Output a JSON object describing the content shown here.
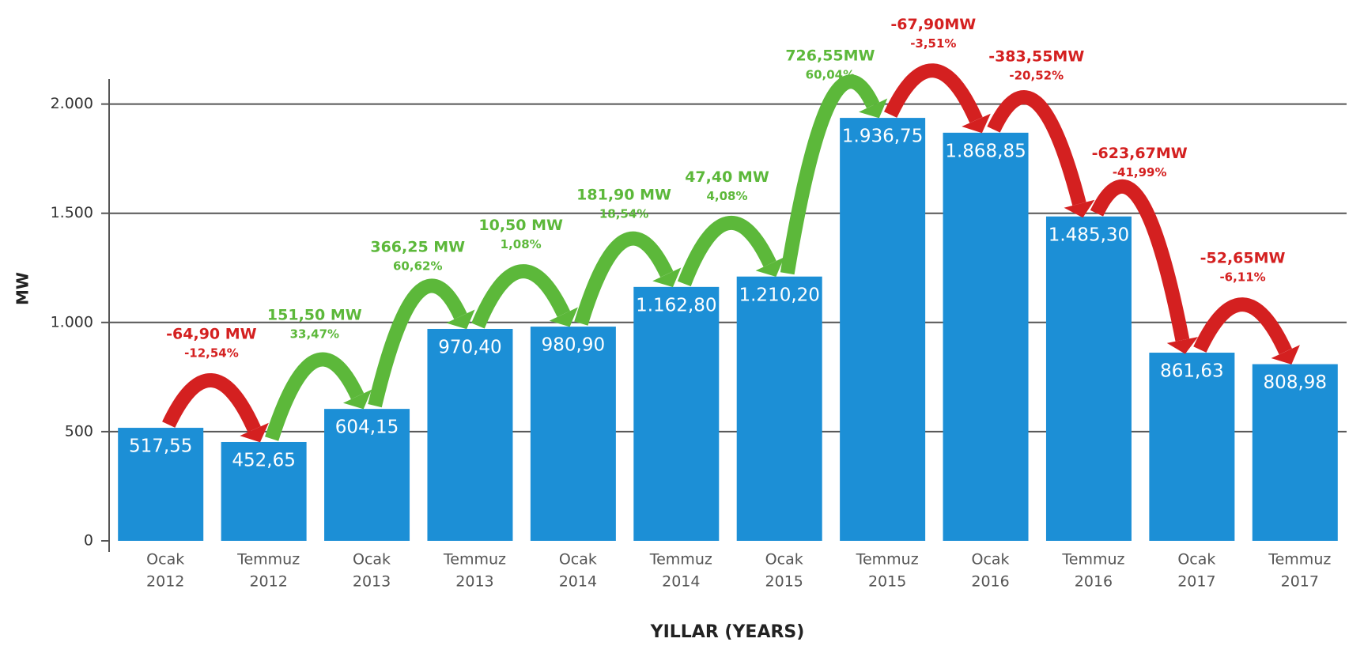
{
  "chart_data": {
    "type": "bar",
    "y_label": "MW",
    "x_label": "YILLAR (YEARS)",
    "categories": [
      [
        "Ocak",
        "2012"
      ],
      [
        "Temmuz",
        "2012"
      ],
      [
        "Ocak",
        "2013"
      ],
      [
        "Temmuz",
        "2013"
      ],
      [
        "Ocak",
        "2014"
      ],
      [
        "Temmuz",
        "2014"
      ],
      [
        "Ocak",
        "2015"
      ],
      [
        "Temmuz",
        "2015"
      ],
      [
        "Ocak",
        "2016"
      ],
      [
        "Temmuz",
        "2016"
      ],
      [
        "Ocak",
        "2017"
      ],
      [
        "Temmuz",
        "2017"
      ]
    ],
    "values": [
      517.55,
      452.65,
      604.15,
      970.4,
      980.9,
      1162.8,
      1210.2,
      1936.75,
      1868.85,
      1485.3,
      861.63,
      808.98
    ],
    "value_labels": [
      "517,55",
      "452,65",
      "604,15",
      "970,40",
      "980,90",
      "1.162,80",
      "1.210,20",
      "1.936,75",
      "1.868,85",
      "1.485,30",
      "861,63",
      "808,98"
    ],
    "color": "#1c8fd6",
    "ylim": [
      0,
      2100
    ],
    "yticks": [
      0,
      500,
      {
        "value": 1000,
        "label": "1.000"
      },
      {
        "value": 1500,
        "label": "1.500"
      },
      {
        "value": 2000,
        "label": "2.000"
      }
    ],
    "grid": true,
    "annotations": [
      {
        "text": "-64,90 MW",
        "percent": "-12,54%",
        "color": "#d42020"
      },
      {
        "text": "151,50 MW",
        "percent": "33,47%",
        "color": "#5cb83a"
      },
      {
        "text": "366,25 MW",
        "percent": "60,62%",
        "color": "#5cb83a"
      },
      {
        "text": "10,50 MW",
        "percent": "1,08%",
        "color": "#5cb83a"
      },
      {
        "text": "181,90 MW",
        "percent": "18,54%",
        "color": "#5cb83a"
      },
      {
        "text": "47,40 MW",
        "percent": "4,08%",
        "color": "#5cb83a"
      },
      {
        "text": "726,55MW",
        "percent": "60,04%",
        "color": "#5cb83a"
      },
      {
        "text": "-67,90MW",
        "percent": "-3,51%",
        "color": "#d42020"
      },
      {
        "text": "-383,55MW",
        "percent": "-20,52%",
        "color": "#d42020"
      },
      {
        "text": "-623,67MW",
        "percent": "-41,99%",
        "color": "#d42020"
      },
      {
        "text": "-52,65MW",
        "percent": "-6,11%",
        "color": "#d42020"
      }
    ]
  }
}
